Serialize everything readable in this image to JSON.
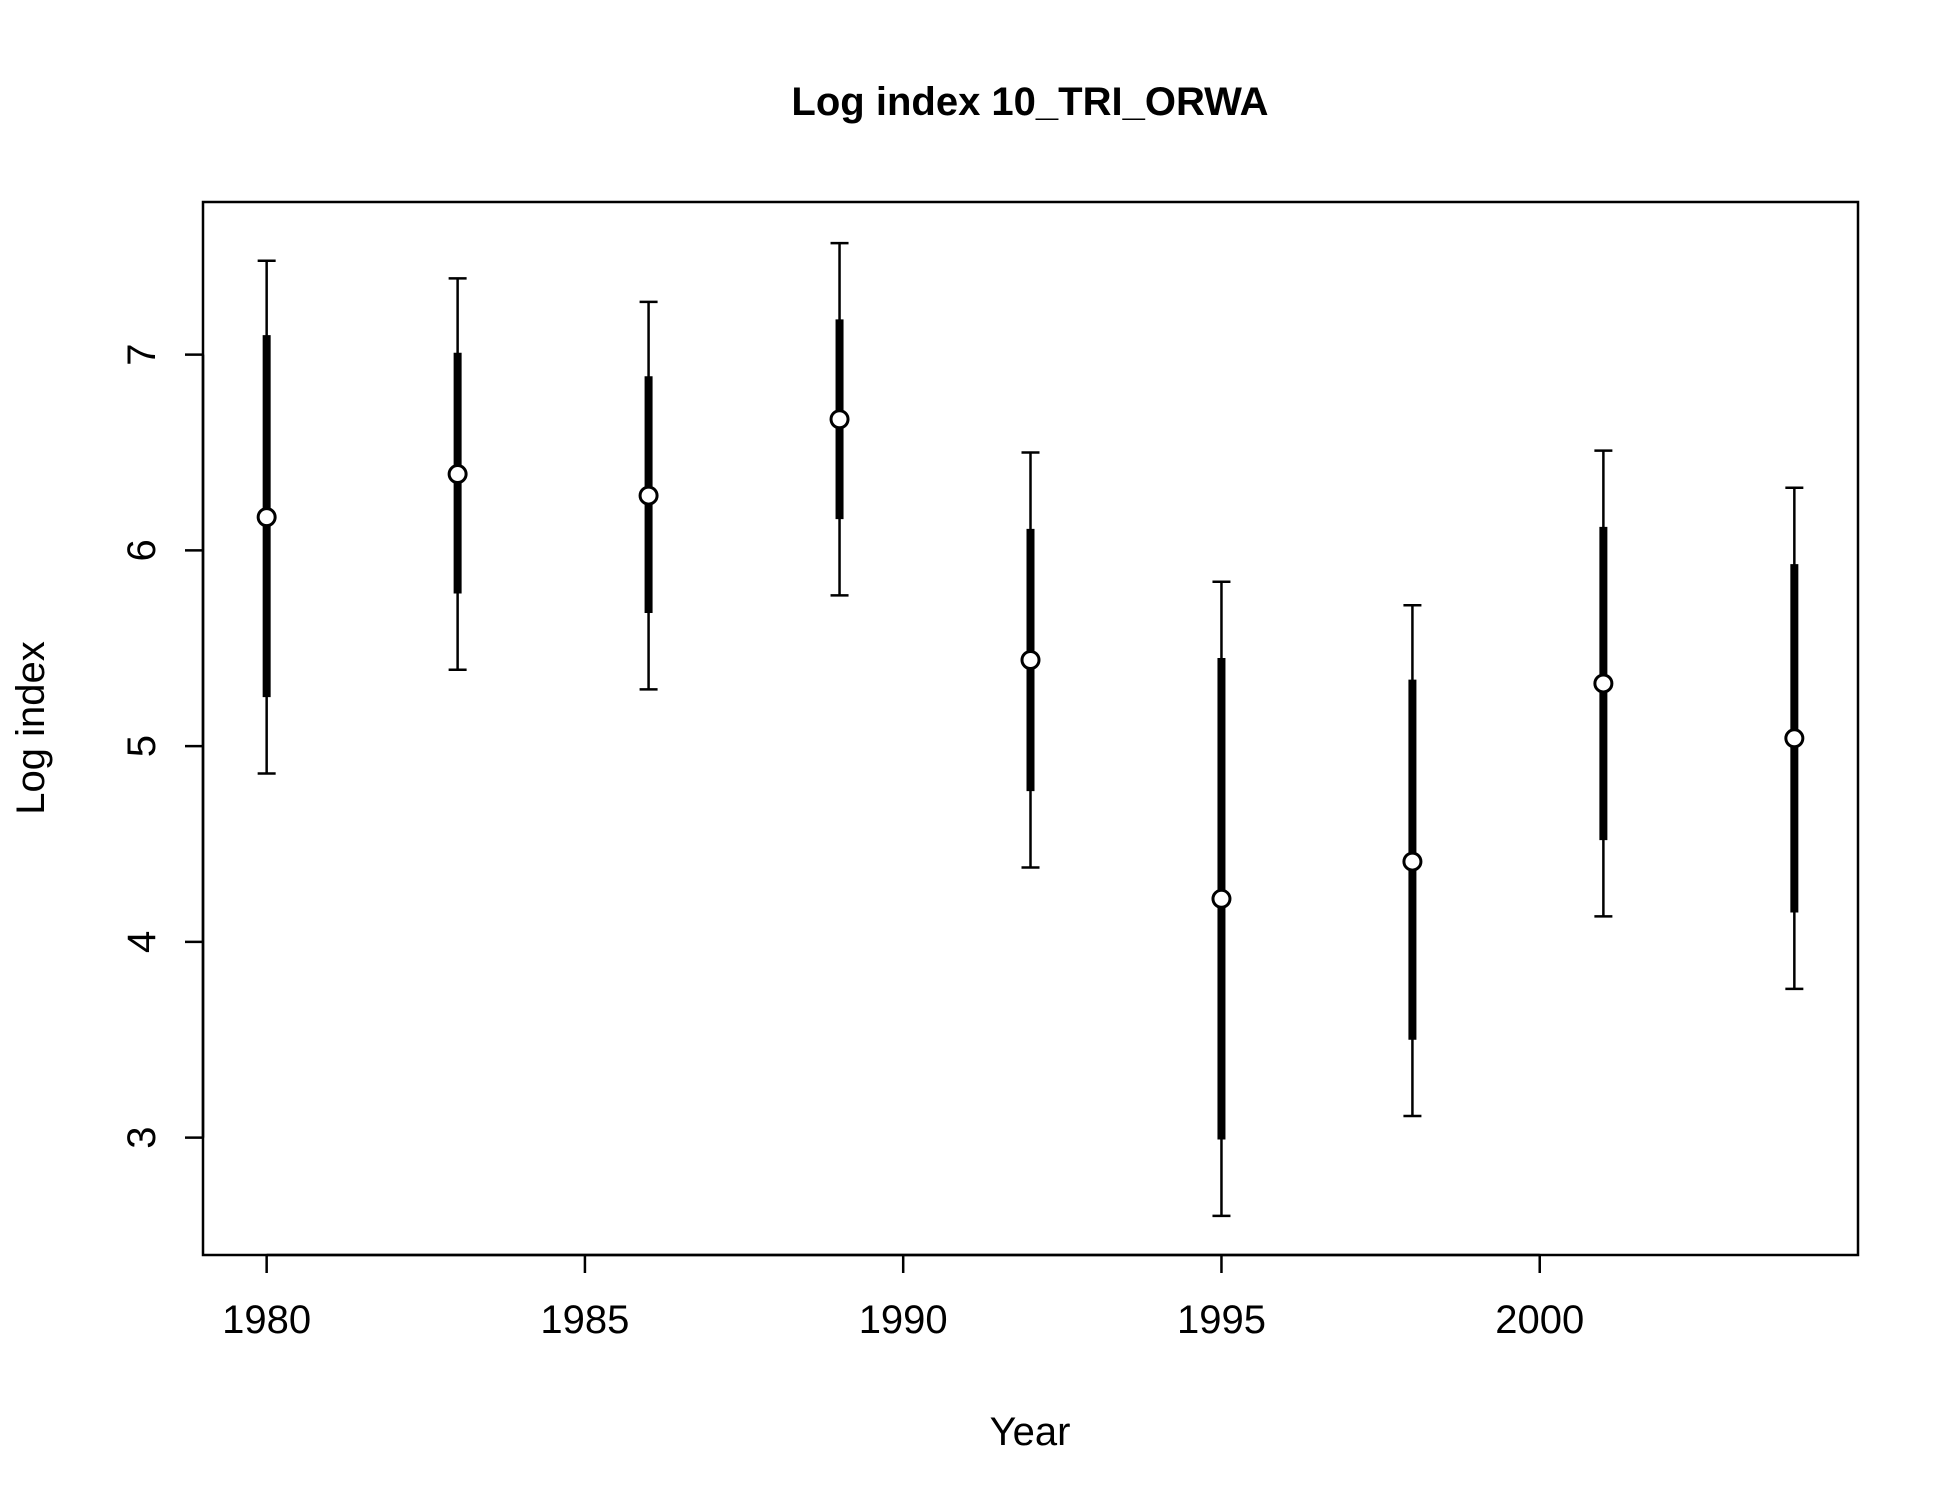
{
  "chart_data": {
    "type": "scatter",
    "title": "Log index 10_TRI_ORWA",
    "xlabel": "Year",
    "ylabel": "Log index",
    "xlim": [
      1979,
      2005
    ],
    "ylim": [
      2.4,
      7.78
    ],
    "x_ticks": [
      1980,
      1985,
      1990,
      1995,
      2000
    ],
    "y_ticks": [
      3,
      4,
      5,
      6,
      7
    ],
    "grid": false,
    "legend": "none",
    "series": [
      {
        "points": [
          {
            "x": 1980,
            "y": 6.17,
            "inner_lo": 5.25,
            "inner_hi": 7.1,
            "outer_lo": 4.86,
            "outer_hi": 7.48
          },
          {
            "x": 1983,
            "y": 6.39,
            "inner_lo": 5.78,
            "inner_hi": 7.01,
            "outer_lo": 5.39,
            "outer_hi": 7.39
          },
          {
            "x": 1986,
            "y": 6.28,
            "inner_lo": 5.68,
            "inner_hi": 6.89,
            "outer_lo": 5.29,
            "outer_hi": 7.27
          },
          {
            "x": 1989,
            "y": 6.67,
            "inner_lo": 6.16,
            "inner_hi": 7.18,
            "outer_lo": 5.77,
            "outer_hi": 7.57
          },
          {
            "x": 1992,
            "y": 5.44,
            "inner_lo": 4.77,
            "inner_hi": 6.11,
            "outer_lo": 4.38,
            "outer_hi": 6.5
          },
          {
            "x": 1995,
            "y": 4.22,
            "inner_lo": 2.99,
            "inner_hi": 5.45,
            "outer_lo": 2.6,
            "outer_hi": 5.84
          },
          {
            "x": 1998,
            "y": 4.41,
            "inner_lo": 3.5,
            "inner_hi": 5.34,
            "outer_lo": 3.11,
            "outer_hi": 5.72
          },
          {
            "x": 2001,
            "y": 5.32,
            "inner_lo": 4.52,
            "inner_hi": 6.12,
            "outer_lo": 4.13,
            "outer_hi": 6.51
          },
          {
            "x": 2004,
            "y": 5.04,
            "inner_lo": 4.15,
            "inner_hi": 5.93,
            "outer_lo": 3.76,
            "outer_hi": 6.32
          }
        ]
      }
    ]
  },
  "colors": {
    "background": "#ffffff",
    "foreground": "#000000"
  }
}
